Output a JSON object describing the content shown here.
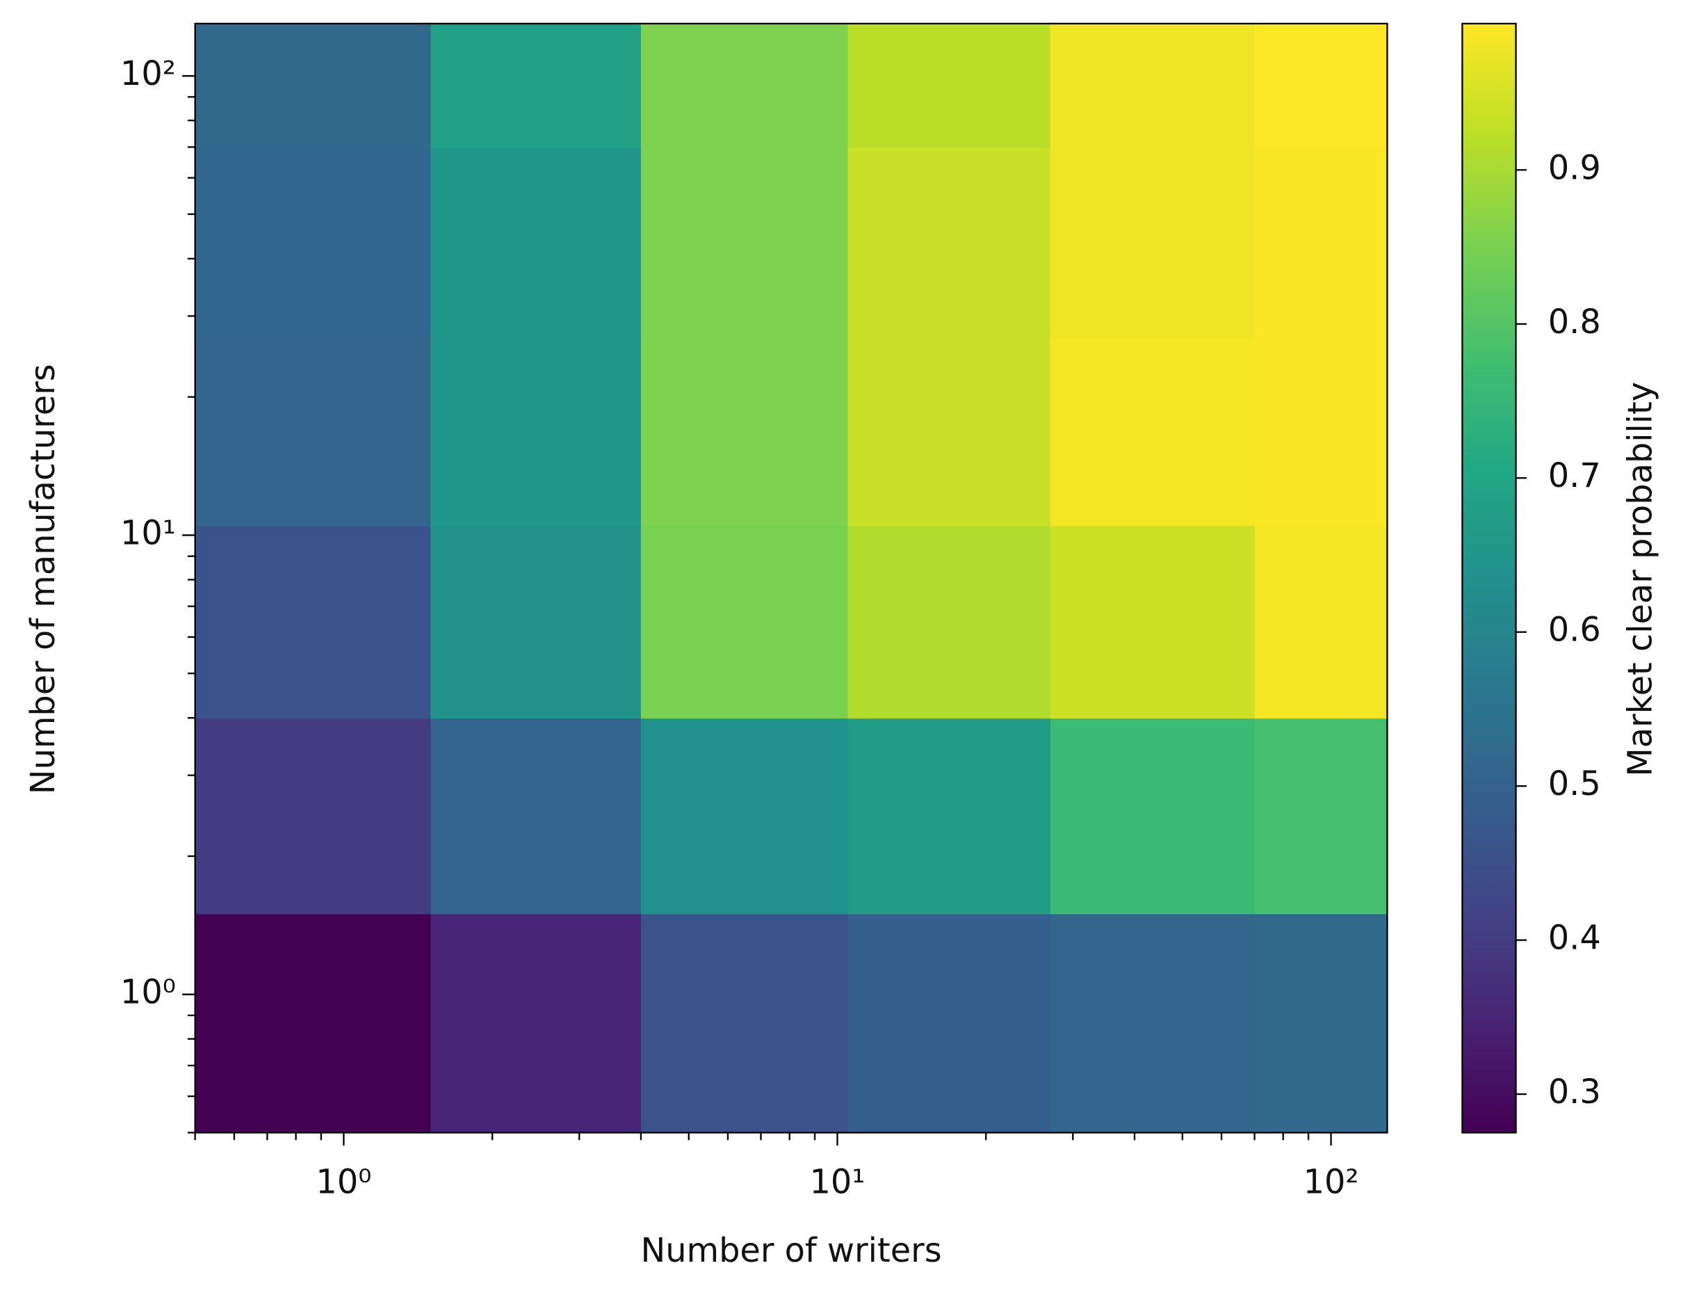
{
  "chart_data": {
    "type": "heatmap",
    "x_label": "Number of writers",
    "y_label": "Number of manufacturers",
    "colorbar_label": "Market clear probability",
    "x_edges": [
      0.5,
      1.5,
      4,
      10.5,
      27,
      70,
      130
    ],
    "y_edges": [
      0.5,
      1.5,
      4,
      10.5,
      27,
      70,
      130
    ],
    "values": [
      [
        0.275,
        0.35,
        0.455,
        0.49,
        0.51,
        0.52
      ],
      [
        0.4,
        0.51,
        0.635,
        0.67,
        0.765,
        0.78
      ],
      [
        0.46,
        0.64,
        0.85,
        0.91,
        0.94,
        0.985
      ],
      [
        0.51,
        0.65,
        0.855,
        0.935,
        0.985,
        0.99
      ],
      [
        0.515,
        0.655,
        0.855,
        0.935,
        0.98,
        0.99
      ],
      [
        0.52,
        0.685,
        0.855,
        0.92,
        0.98,
        0.995
      ]
    ],
    "xlim": [
      0.5,
      130
    ],
    "ylim": [
      0.5,
      130
    ],
    "x_log": true,
    "y_log": true,
    "xticks": [
      {
        "value": 1,
        "label": "10⁰"
      },
      {
        "value": 10,
        "label": "10¹"
      },
      {
        "value": 100,
        "label": "10²"
      }
    ],
    "yticks": [
      {
        "value": 1,
        "label": "10⁰"
      },
      {
        "value": 10,
        "label": "10¹"
      },
      {
        "value": 100,
        "label": "10²"
      }
    ],
    "colormap": "viridis",
    "clim": [
      0.275,
      0.995
    ],
    "cticks": [
      0.3,
      0.4,
      0.5,
      0.6,
      0.7,
      0.8,
      0.9
    ]
  }
}
